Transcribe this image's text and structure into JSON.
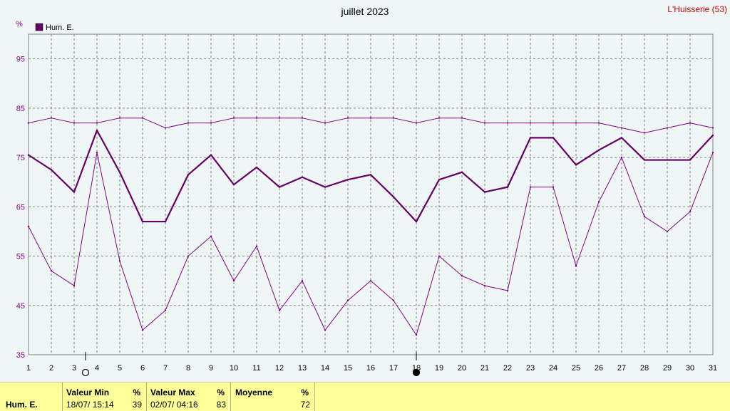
{
  "header": {
    "title": "juillet 2023",
    "location": "L'Huisserie (53)"
  },
  "chart_data": {
    "type": "line",
    "title": "juillet 2023",
    "ylabel": "%",
    "ylim": [
      35,
      100
    ],
    "yticks": [
      35,
      45,
      55,
      65,
      75,
      85,
      95
    ],
    "x": [
      1,
      2,
      3,
      4,
      5,
      6,
      7,
      8,
      9,
      10,
      11,
      12,
      13,
      14,
      15,
      16,
      17,
      18,
      19,
      20,
      21,
      22,
      23,
      24,
      25,
      26,
      27,
      28,
      29,
      30,
      31
    ],
    "grid": true,
    "legend_position": "top-left",
    "series": [
      {
        "name": "Hum. E.",
        "role": "mean",
        "color": "#660066",
        "values": [
          75.5,
          72.5,
          68,
          80.5,
          72,
          62,
          62,
          71.5,
          75.5,
          69.5,
          73,
          69,
          71,
          69,
          70.5,
          71.5,
          67,
          62,
          70.5,
          72,
          68,
          69,
          79,
          79,
          73.5,
          76.5,
          79,
          74.5,
          74.5,
          74.5,
          79.5
        ]
      },
      {
        "role": "max",
        "color": "#880088",
        "values": [
          82,
          83,
          82,
          82,
          83,
          83,
          81,
          82,
          82,
          83,
          83,
          83,
          83,
          82,
          83,
          83,
          83,
          82,
          83,
          83,
          82,
          82,
          82,
          82,
          82,
          82,
          81,
          80,
          81,
          82,
          81
        ]
      },
      {
        "role": "min",
        "color": "#880088",
        "values": [
          61,
          52,
          49,
          76,
          54,
          40,
          44,
          55,
          59,
          50,
          57,
          44,
          50,
          40,
          46,
          50,
          46,
          39,
          55,
          51,
          49,
          48,
          69,
          69,
          53,
          66,
          75,
          63,
          60,
          64,
          76
        ]
      }
    ],
    "markers": [
      {
        "type": "max",
        "day": 3.5,
        "symbol": "empty-circle"
      },
      {
        "type": "min",
        "day": 18,
        "symbol": "filled-circle"
      }
    ]
  },
  "stats": {
    "row_label": "Hum. E.",
    "min": {
      "label": "Valeur Min",
      "unit": "%",
      "when": "18/07/ 15:14",
      "value": "39"
    },
    "max": {
      "label": "Valeur Max",
      "unit": "%",
      "when": "02/07/ 04:16",
      "value": "83"
    },
    "avg": {
      "label": "Moyenne",
      "unit": "%",
      "value": "72"
    }
  }
}
